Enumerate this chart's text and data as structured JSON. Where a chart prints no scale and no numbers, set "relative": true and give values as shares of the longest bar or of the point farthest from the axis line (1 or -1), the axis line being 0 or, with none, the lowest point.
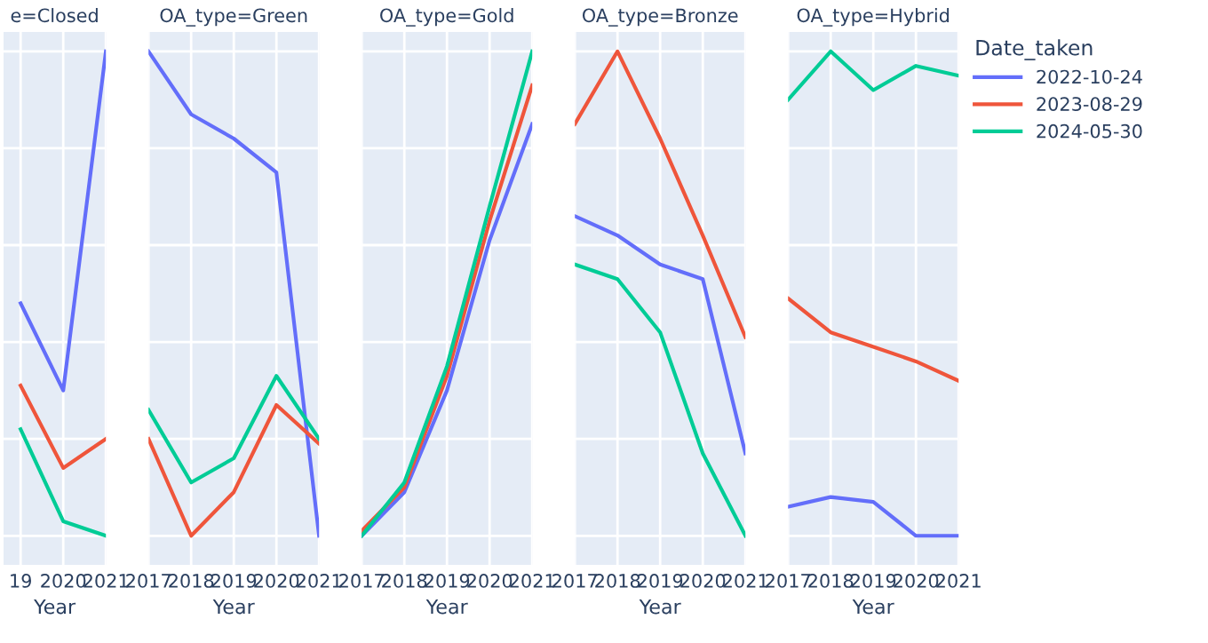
{
  "chart_data": [
    {
      "type": "line",
      "title": "e=Closed",
      "xlabel": "Year",
      "relative": true,
      "x": [
        2019,
        2020,
        2021
      ],
      "xlim": [
        2018.6,
        2021
      ],
      "xticks": [
        {
          "value": 2019,
          "label": "19"
        },
        2020,
        2021
      ],
      "grid": true,
      "tick_labels": "x",
      "series": [
        {
          "color": "#636efa",
          "values": [
            0.48,
            0.3,
            1
          ]
        },
        {
          "color": "#ef553b",
          "values": [
            0.31,
            0.14,
            0.2
          ]
        },
        {
          "color": "#00cc96",
          "values": [
            0.22,
            0.03,
            0
          ]
        }
      ]
    },
    {
      "type": "line",
      "title": "OA_type=Green",
      "xlabel": "Year",
      "relative": true,
      "x": [
        2017,
        2018,
        2019,
        2020,
        2021
      ],
      "xlim": [
        2017,
        2021
      ],
      "xticks": [
        2017,
        2018,
        2019,
        2020,
        2021
      ],
      "grid": true,
      "tick_labels": "x",
      "series": [
        {
          "color": "#636efa",
          "values": [
            1,
            0.87,
            0.82,
            0.75,
            0
          ]
        },
        {
          "color": "#ef553b",
          "values": [
            0.2,
            0,
            0.09,
            0.27,
            0.19
          ]
        },
        {
          "color": "#00cc96",
          "values": [
            0.26,
            0.11,
            0.16,
            0.33,
            0.2
          ]
        }
      ]
    },
    {
      "type": "line",
      "title": "OA_type=Gold",
      "xlabel": "Year",
      "relative": true,
      "x": [
        2017,
        2018,
        2019,
        2020,
        2021
      ],
      "xlim": [
        2017,
        2021
      ],
      "xticks": [
        2017,
        2018,
        2019,
        2020,
        2021
      ],
      "grid": true,
      "tick_labels": "x",
      "series": [
        {
          "color": "#636efa",
          "values": [
            0,
            0.09,
            0.3,
            0.61,
            0.85
          ]
        },
        {
          "color": "#ef553b",
          "values": [
            0.01,
            0.1,
            0.33,
            0.65,
            0.93
          ]
        },
        {
          "color": "#00cc96",
          "values": [
            0,
            0.11,
            0.35,
            0.68,
            1
          ]
        }
      ]
    },
    {
      "type": "line",
      "title": "OA_type=Bronze",
      "xlabel": "Year",
      "relative": true,
      "x": [
        2017,
        2018,
        2019,
        2020,
        2021
      ],
      "xlim": [
        2017,
        2021
      ],
      "xticks": [
        2017,
        2018,
        2019,
        2020,
        2021
      ],
      "grid": true,
      "tick_labels": "x",
      "series": [
        {
          "color": "#636efa",
          "values": [
            0.66,
            0.62,
            0.56,
            0.53,
            0.17
          ]
        },
        {
          "color": "#ef553b",
          "values": [
            0.85,
            1,
            0.82,
            0.62,
            0.41
          ]
        },
        {
          "color": "#00cc96",
          "values": [
            0.56,
            0.53,
            0.42,
            0.17,
            0
          ]
        }
      ]
    },
    {
      "type": "line",
      "title": "OA_type=Hybrid",
      "xlabel": "Year",
      "relative": true,
      "x": [
        2017,
        2018,
        2019,
        2020,
        2021
      ],
      "xlim": [
        2017,
        2021
      ],
      "xticks": [
        2017,
        2018,
        2019,
        2020,
        2021
      ],
      "grid": true,
      "tick_labels": "x",
      "legend": "right",
      "legend_title": "Date_taken",
      "series": [
        {
          "name": "2022-10-24",
          "color": "#636efa",
          "values": [
            0.06,
            0.08,
            0.07,
            0,
            0
          ]
        },
        {
          "name": "2023-08-29",
          "color": "#ef553b",
          "values": [
            0.49,
            0.42,
            0.39,
            0.36,
            0.32
          ]
        },
        {
          "name": "2024-05-30",
          "color": "#00cc96",
          "values": [
            0.9,
            1,
            0.92,
            0.97,
            0.95
          ]
        }
      ]
    }
  ]
}
